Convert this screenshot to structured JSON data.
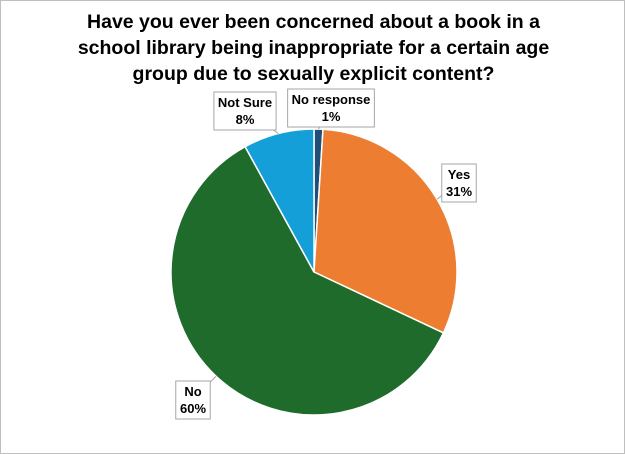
{
  "chart_data": {
    "type": "pie",
    "title": "Have you ever been concerned about a book in a school library being inappropriate for a certain age group due to sexually explicit content?",
    "categories": [
      "No response",
      "Yes",
      "No",
      "Not Sure"
    ],
    "values": [
      1,
      31,
      60,
      8
    ],
    "value_labels": [
      "1%",
      "31%",
      "60%",
      "8%"
    ],
    "colors": [
      "#1f4e79",
      "#ed7d31",
      "#1e6b2b",
      "#149fd9"
    ]
  }
}
